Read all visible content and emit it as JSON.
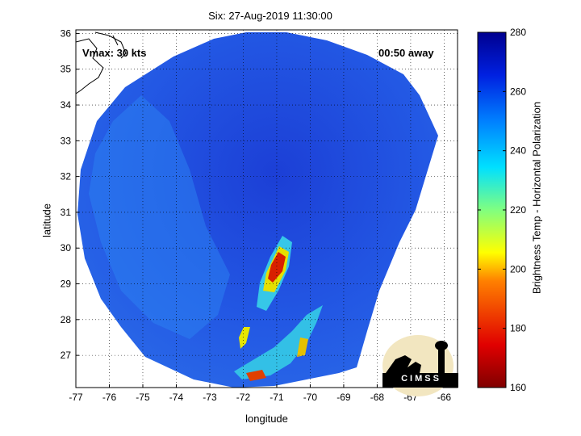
{
  "title": "Six: 27-Aug-2019 11:30:00",
  "xlabel": "longitude",
  "ylabel": "latitude",
  "colorbar_label": "Brightness Temp - Horizontal Polarization",
  "annotations": {
    "vmax": "Vmax: 30 kts",
    "away": "00:50 away"
  },
  "logo_text": "CIMSS",
  "colors": {
    "cold_blue": "#1b3ad8",
    "mid_blue": "#2a6be8",
    "cyan": "#33bfe8",
    "yellow": "#e6e600",
    "red": "#d82000",
    "dark_red": "#800000"
  },
  "chart_data": {
    "type": "heatmap",
    "x_ticks": [
      "-77",
      "-76",
      "-75",
      "-74",
      "-73",
      "-72",
      "-71",
      "-70",
      "-69",
      "-68",
      "-67",
      "-66"
    ],
    "y_ticks": [
      "27",
      "28",
      "29",
      "30",
      "31",
      "32",
      "33",
      "34",
      "35",
      "36"
    ],
    "xlim": [
      -77,
      -65.6
    ],
    "ylim": [
      26.1,
      36.1
    ],
    "grid": true,
    "colorbar": {
      "ticks": [
        "280",
        "260",
        "240",
        "220",
        "200",
        "180",
        "160"
      ],
      "range": [
        160,
        280
      ]
    }
  }
}
